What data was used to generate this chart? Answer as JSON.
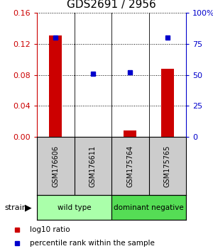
{
  "title": "GDS2691 / 2956",
  "samples": [
    "GSM176606",
    "GSM176611",
    "GSM175764",
    "GSM175765"
  ],
  "log10_ratio": [
    0.131,
    -0.008,
    0.008,
    0.088
  ],
  "percentile_rank_pct": [
    80,
    51,
    52,
    80
  ],
  "ylim_left": [
    0,
    0.16
  ],
  "ylim_right": [
    0,
    100
  ],
  "yticks_left": [
    0,
    0.04,
    0.08,
    0.12,
    0.16
  ],
  "yticks_right": [
    0,
    25,
    50,
    75,
    100
  ],
  "ytick_labels_right": [
    "0",
    "25",
    "50",
    "75",
    "100%"
  ],
  "bar_color": "#cc0000",
  "dot_color": "#0000cc",
  "groups": [
    {
      "label": "wild type",
      "samples": [
        0,
        1
      ],
      "color": "#aaffaa"
    },
    {
      "label": "dominant negative",
      "samples": [
        2,
        3
      ],
      "color": "#55dd55"
    }
  ],
  "legend_items": [
    {
      "color": "#cc0000",
      "label": "log10 ratio"
    },
    {
      "color": "#0000cc",
      "label": "percentile rank within the sample"
    }
  ],
  "sample_box_color": "#cccccc",
  "left_axis_color": "#cc0000",
  "right_axis_color": "#0000cc",
  "bar_width": 0.35
}
